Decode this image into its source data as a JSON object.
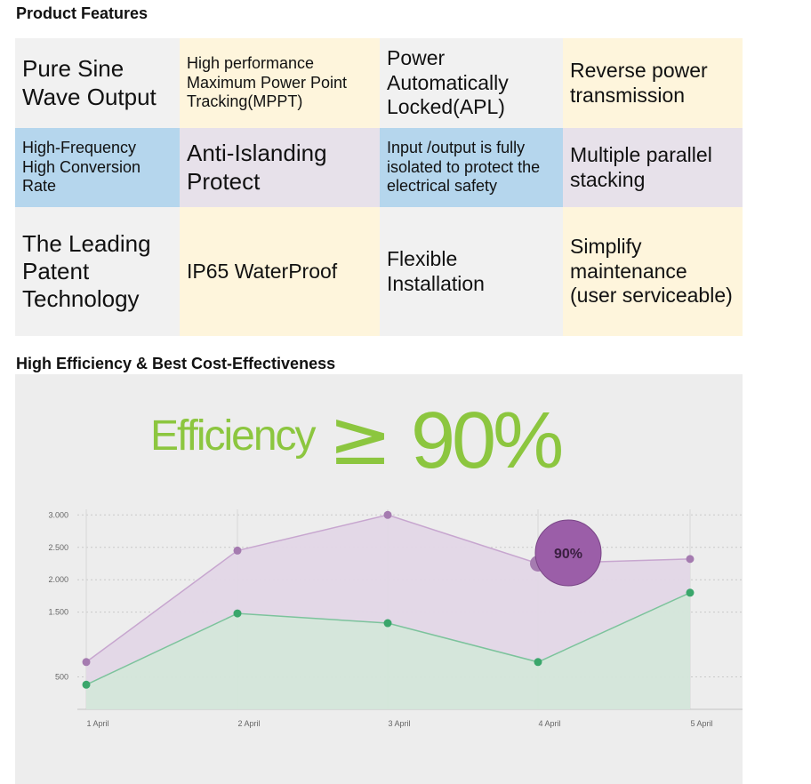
{
  "headings": {
    "features": "Product Features",
    "efficiency": "High Efficiency & Best Cost-Effectiveness"
  },
  "features": [
    [
      "Pure Sine Wave Output",
      "High performance Maximum Power Point Tracking(MPPT)",
      "Power Automatically Locked(APL)",
      "Reverse power transmission"
    ],
    [
      "High-Frequency High Conversion Rate",
      "Anti-Islanding Protect",
      "Input /output is fully isolated to protect the electrical safety",
      "Multiple parallel stacking"
    ],
    [
      "The Leading Patent Technology",
      "IP65 WaterProof",
      "Flexible Installation",
      "Simplify maintenance (user serviceable)"
    ]
  ],
  "colors": {
    "green_text": "#8cc63f",
    "purple_series": "#a57bb0",
    "green_series": "#3aa66b",
    "bubble": "#9b5ea8"
  },
  "chart_data": {
    "type": "area",
    "headline_word": "Efficiency",
    "headline_symbol": "≥",
    "headline_value": "90%",
    "title": "",
    "xlabel": "",
    "ylabel": "",
    "categories": [
      "1 April",
      "2 April",
      "3 April",
      "4 April",
      "5 April"
    ],
    "y_ticks": [
      "500",
      "1.500",
      "2.000",
      "2.500",
      "3.000"
    ],
    "y_tick_values": [
      500,
      1500,
      2000,
      2500,
      3000
    ],
    "ylim": [
      0,
      3300
    ],
    "grid": true,
    "series": [
      {
        "values": [
          730,
          2450,
          3000,
          2250,
          2320
        ]
      },
      {
        "values": [
          380,
          1480,
          1330,
          730,
          1800
        ]
      }
    ],
    "callout": {
      "label": "90%",
      "category": "4 April",
      "series_index": 0
    }
  }
}
